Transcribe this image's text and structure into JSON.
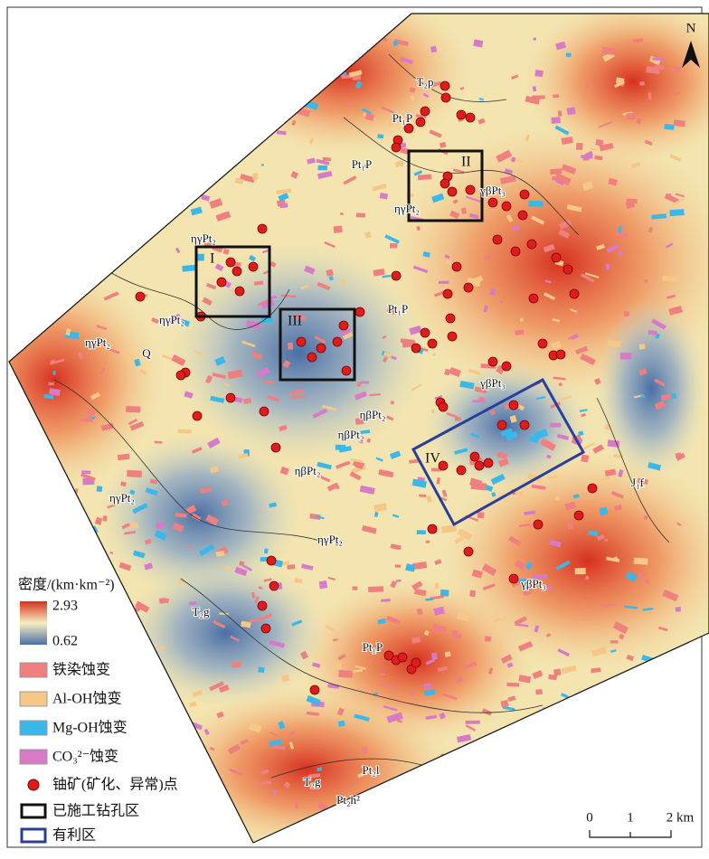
{
  "north": "N",
  "zones": [
    "I",
    "II",
    "III",
    "IV"
  ],
  "map_labels": [
    "T₂p",
    "Pt₁P",
    "Pt₁P",
    "γβPt₃",
    "ηγPt₂",
    "ηγPt₂",
    "ηγPt₂",
    "ηγPt₂",
    "Q",
    "Pt₁P",
    "γβPt₃",
    "ηβPt₂",
    "ηβPt₂",
    "ηβPt₂",
    "ηγPt₂",
    "J₁f",
    "ηγPt₂",
    "γβPt₃",
    "T₂g",
    "Pt₁P",
    "Pt₂l",
    "T₂g",
    "Pt₂h²"
  ],
  "legend": {
    "title": "密度/(km·km⁻²)",
    "max": "2.93",
    "min": "0.62",
    "items": [
      "铁染蚀变",
      "Al-OH蚀变",
      "Mg-OH蚀变",
      "CO₃²⁻蚀变",
      "铀矿(矿化、异常)点",
      "已施工钻孔区",
      "有利区"
    ]
  },
  "scale_bar": [
    "0",
    "1",
    "2 km"
  ]
}
